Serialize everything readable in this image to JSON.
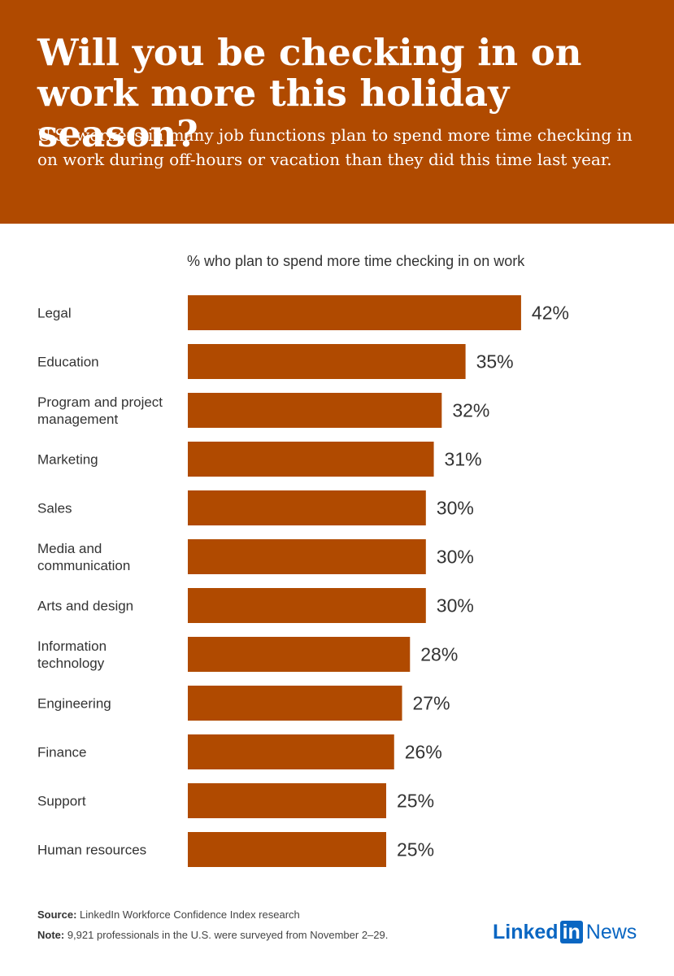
{
  "header": {
    "title": "Will you be checking in on work more this holiday season?",
    "subtitle": "U.S. workers in many job functions plan to spend more time checking in on work during off-hours or vacation than they did this time last year."
  },
  "colors": {
    "accent": "#b04a00",
    "bar": "#b04a00",
    "logo": "#0a66c2"
  },
  "chart_data": {
    "type": "bar",
    "orientation": "horizontal",
    "title": "% who plan to spend more time checking in on work",
    "categories": [
      [
        "Legal"
      ],
      [
        "Education"
      ],
      [
        "Program and project",
        "management"
      ],
      [
        "Marketing"
      ],
      [
        "Sales"
      ],
      [
        "Media and",
        "communication"
      ],
      [
        "Arts and design"
      ],
      [
        "Information",
        "technology"
      ],
      [
        "Engineering"
      ],
      [
        "Finance"
      ],
      [
        "Support"
      ],
      [
        "Human resources"
      ]
    ],
    "values": [
      42,
      35,
      32,
      31,
      30,
      30,
      30,
      28,
      27,
      26,
      25,
      25
    ],
    "value_suffix": "%",
    "grid": false,
    "legend": "none"
  },
  "footer": {
    "source_label": "Source:",
    "source_text": " LinkedIn Workforce Confidence Index research",
    "note_label": "Note:",
    "note_text": "  9,921 professionals in the U.S. were surveyed from November 2–29."
  },
  "logo": {
    "linked": "Linked",
    "in": "in",
    "news": "News"
  }
}
